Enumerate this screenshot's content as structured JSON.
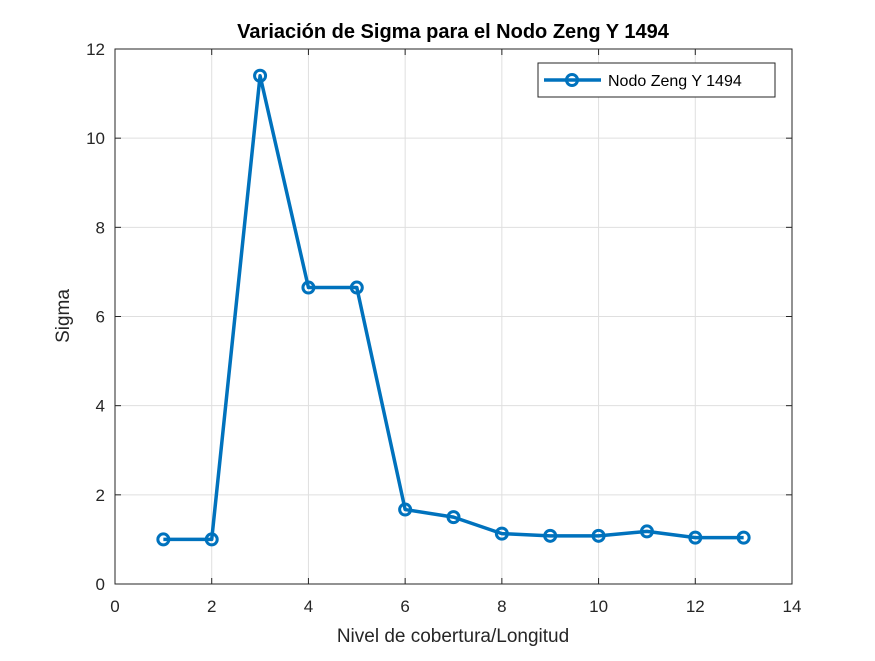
{
  "chart_data": {
    "type": "line",
    "title": "Variación de Sigma para el Nodo Zeng Y 1494",
    "xlabel": "Nivel de cobertura/Longitud",
    "ylabel": "Sigma",
    "xlim": [
      0,
      14
    ],
    "ylim": [
      0,
      12
    ],
    "xticks": [
      "0",
      "2",
      "4",
      "6",
      "8",
      "10",
      "12",
      "14"
    ],
    "yticks": [
      "0",
      "2",
      "4",
      "6",
      "8",
      "10",
      "12"
    ],
    "grid": true,
    "legend_position": "top-right",
    "series": [
      {
        "name": "Nodo Zeng Y 1494",
        "color": "#0072BD",
        "marker": "circle",
        "x": [
          1,
          2,
          3,
          4,
          5,
          6,
          7,
          8,
          9,
          10,
          11,
          12,
          13
        ],
        "y": [
          1.0,
          1.0,
          11.4,
          6.65,
          6.65,
          1.67,
          1.5,
          1.13,
          1.08,
          1.08,
          1.18,
          1.04,
          1.04
        ]
      }
    ]
  }
}
